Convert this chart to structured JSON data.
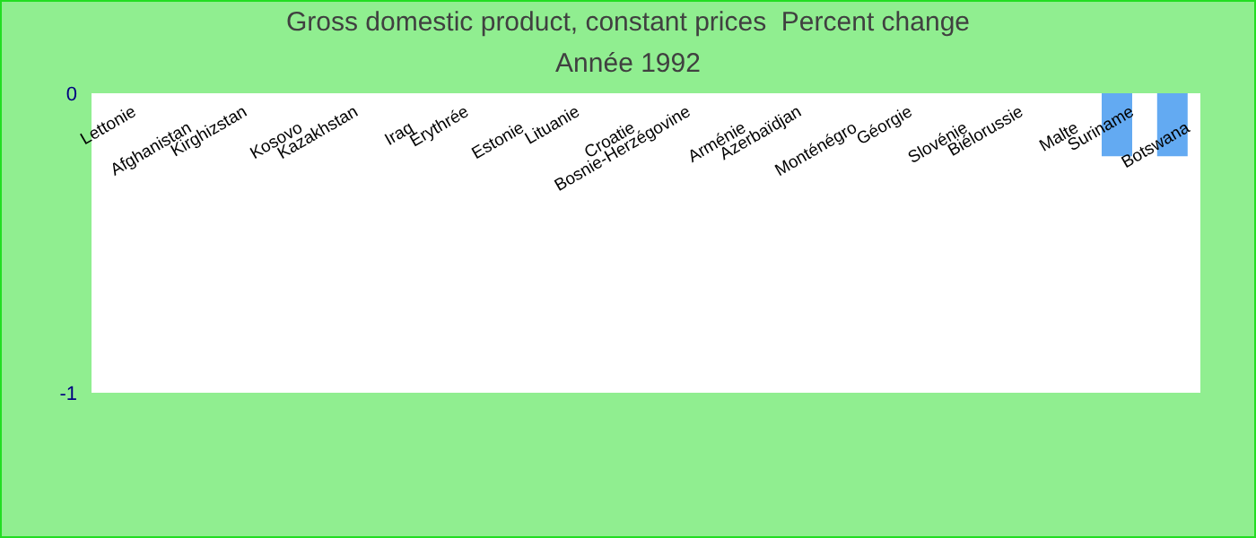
{
  "chart_data": {
    "type": "bar",
    "title": "Gross domestic product, constant prices  Percent change",
    "subtitle": "Année 1992",
    "categories": [
      "Lettonie",
      "Afghanistan",
      "Kirghizstan",
      "Kosovo",
      "Kazakhstan",
      "Iraq",
      "Erythrée",
      "Estonie",
      "Lituanie",
      "Croatie",
      "Bosnie-Herzégovine",
      "Arménie",
      "Azerbaïdjan",
      "Monténégro",
      "Géorgie",
      "Slovénie",
      "Biélorussie",
      "Malte",
      "Suriname",
      "Botswana"
    ],
    "values": [
      null,
      null,
      null,
      null,
      null,
      null,
      null,
      null,
      null,
      null,
      null,
      null,
      null,
      null,
      null,
      null,
      null,
      null,
      -0.21,
      -0.21
    ],
    "color": "#63aaf2",
    "ylim": [
      -1,
      0
    ],
    "yticks": [
      -1,
      0
    ],
    "grid": false
  }
}
